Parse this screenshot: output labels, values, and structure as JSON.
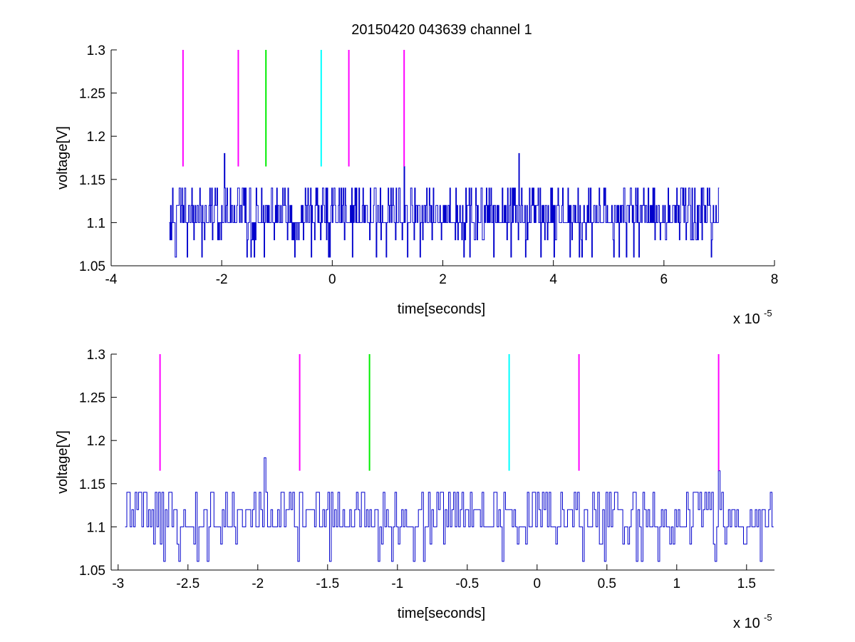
{
  "figure_title": "20150420 043639 channel 1",
  "colors": {
    "signal": "#0000cc",
    "marker_magenta": "#ff00ff",
    "marker_green": "#00ee00",
    "marker_cyan": "#00ffff",
    "axes": "#000000",
    "background": "#ffffff"
  },
  "chart_data": [
    {
      "type": "line",
      "title": "20150420 043639 channel 1",
      "xlabel": "time[seconds]",
      "ylabel": "voltage[V]",
      "x_exponent_label": "x 10",
      "x_exponent": "-5",
      "xlim": [
        -4,
        8
      ],
      "ylim": [
        1.05,
        1.3
      ],
      "xticks": [
        -4,
        -2,
        0,
        2,
        4,
        6,
        8
      ],
      "xtick_labels": [
        "-4",
        "-2",
        "0",
        "2",
        "4",
        "6",
        "8"
      ],
      "yticks": [
        1.05,
        1.1,
        1.15,
        1.2,
        1.25,
        1.3
      ],
      "ytick_labels": [
        "1.05",
        "1.1",
        "1.15",
        "1.2",
        "1.25",
        "1.3"
      ],
      "grid": false,
      "series": [
        {
          "x_range": [
            -2.95,
            7.0
          ],
          "baseline": 1.1,
          "levels": [
            1.06,
            1.08,
            1.1,
            1.12,
            1.14
          ],
          "spikes": [
            [
              -1.95,
              1.18
            ],
            [
              1.3,
              1.165
            ],
            [
              3.37,
              1.18
            ]
          ]
        }
      ],
      "markers": [
        {
          "x": -2.7,
          "color": "magenta",
          "y_range": [
            1.165,
            1.3
          ]
        },
        {
          "x": -1.7,
          "color": "magenta",
          "y_range": [
            1.165,
            1.3
          ]
        },
        {
          "x": -1.2,
          "color": "green",
          "y_range": [
            1.165,
            1.3
          ]
        },
        {
          "x": -0.2,
          "color": "cyan",
          "y_range": [
            1.165,
            1.3
          ]
        },
        {
          "x": 0.3,
          "color": "magenta",
          "y_range": [
            1.165,
            1.3
          ]
        },
        {
          "x": 1.3,
          "color": "magenta",
          "y_range": [
            1.165,
            1.3
          ]
        }
      ]
    },
    {
      "type": "line",
      "title": "",
      "xlabel": "time[seconds]",
      "ylabel": "voltage[V]",
      "x_exponent_label": "x 10",
      "x_exponent": "-5",
      "xlim": [
        -3.05,
        1.7
      ],
      "ylim": [
        1.05,
        1.3
      ],
      "xticks": [
        -3,
        -2.5,
        -2,
        -1.5,
        -1,
        -0.5,
        0,
        0.5,
        1,
        1.5
      ],
      "xtick_labels": [
        "-3",
        "-2.5",
        "-2",
        "-1.5",
        "-1",
        "-0.5",
        "0",
        "0.5",
        "1",
        "1.5"
      ],
      "yticks": [
        1.05,
        1.1,
        1.15,
        1.2,
        1.25,
        1.3
      ],
      "ytick_labels": [
        "1.05",
        "1.1",
        "1.15",
        "1.2",
        "1.25",
        "1.3"
      ],
      "grid": false,
      "series": [
        {
          "x_range": [
            -2.95,
            1.7
          ],
          "baseline": 1.1,
          "levels": [
            1.06,
            1.08,
            1.1,
            1.12,
            1.14
          ],
          "spikes": [
            [
              -1.95,
              1.18
            ],
            [
              1.3,
              1.165
            ]
          ]
        }
      ],
      "markers": [
        {
          "x": -2.7,
          "color": "magenta",
          "y_range": [
            1.165,
            1.3
          ]
        },
        {
          "x": -1.7,
          "color": "magenta",
          "y_range": [
            1.165,
            1.3
          ]
        },
        {
          "x": -1.2,
          "color": "green",
          "y_range": [
            1.165,
            1.3
          ]
        },
        {
          "x": -0.2,
          "color": "cyan",
          "y_range": [
            1.165,
            1.3
          ]
        },
        {
          "x": 0.3,
          "color": "magenta",
          "y_range": [
            1.165,
            1.3
          ]
        },
        {
          "x": 1.3,
          "color": "magenta",
          "y_range": [
            1.165,
            1.3
          ]
        }
      ]
    }
  ]
}
